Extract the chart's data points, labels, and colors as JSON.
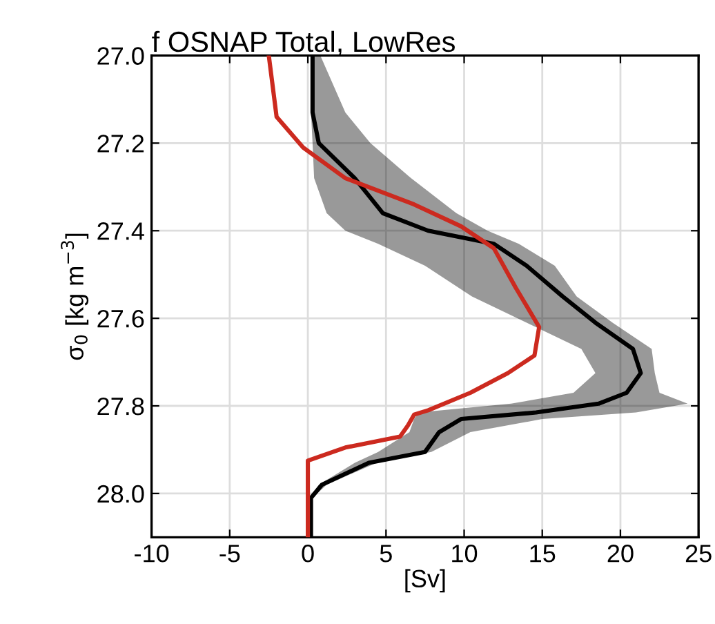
{
  "chart_data": {
    "type": "line",
    "orientation": "horizontal",
    "title": "f OSNAP Total, LowRes",
    "xlabel": "[Sv]",
    "ylabel": "σ$_{0}$ [kg m$^{−3}$]",
    "xlim": [
      -10,
      25
    ],
    "xticks": [
      -10,
      -5,
      0,
      5,
      10,
      15,
      20,
      25
    ],
    "ylim": [
      28.1,
      27.0
    ],
    "yticks": [
      {
        "value": 27.0,
        "label": "27.0"
      },
      {
        "value": 27.2,
        "label": "27.2"
      },
      {
        "value": 27.4,
        "label": "27.4"
      },
      {
        "value": 27.6,
        "label": "27.6"
      },
      {
        "value": 27.8,
        "label": "27.8"
      },
      {
        "value": 28.0,
        "label": "28.0"
      }
    ],
    "grid": true,
    "line_style": "solid",
    "series": [
      {
        "color": "#000000",
        "x": [
          27.0,
          27.13,
          27.2,
          27.28,
          27.36,
          27.4,
          27.43,
          27.48,
          27.55,
          27.61,
          27.67,
          27.725,
          27.77,
          27.795,
          27.815,
          27.83,
          27.86,
          27.905,
          27.93,
          27.98,
          28.01,
          28.1
        ],
        "values": [
          0.3,
          0.3,
          0.7,
          3.0,
          4.8,
          7.7,
          11.9,
          14.0,
          16.3,
          18.4,
          20.8,
          21.3,
          20.4,
          18.6,
          14.6,
          9.8,
          8.4,
          7.5,
          3.9,
          0.9,
          0.2,
          0.2
        ],
        "lower": [
          0.3,
          0.2,
          0.3,
          0.4,
          1.2,
          2.4,
          4.5,
          7.5,
          10.5,
          14.0,
          17.5,
          18.4,
          17.0,
          13.0,
          7.1,
          6.8,
          6.5,
          4.5,
          3.0,
          0.7,
          0.1,
          0.2
        ],
        "upper": [
          0.8,
          2.4,
          4.0,
          6.6,
          9.5,
          11.5,
          13.5,
          15.8,
          17.2,
          19.5,
          22.0,
          22.2,
          22.5,
          24.3,
          21.0,
          15.0,
          10.4,
          7.9,
          4.4,
          1.2,
          0.3,
          0.2
        ]
      },
      {
        "color": "#cc2a1f",
        "x": [
          27.0,
          27.14,
          27.21,
          27.28,
          27.34,
          27.39,
          27.44,
          27.53,
          27.62,
          27.685,
          27.725,
          27.77,
          27.81,
          27.82,
          27.845,
          27.87,
          27.895,
          27.925,
          28.1
        ],
        "values": [
          -2.5,
          -2.0,
          -0.3,
          2.4,
          6.8,
          9.8,
          11.9,
          13.3,
          14.8,
          14.5,
          12.8,
          10.4,
          7.7,
          6.8,
          6.4,
          5.9,
          2.4,
          0.0,
          0.0
        ]
      }
    ]
  }
}
